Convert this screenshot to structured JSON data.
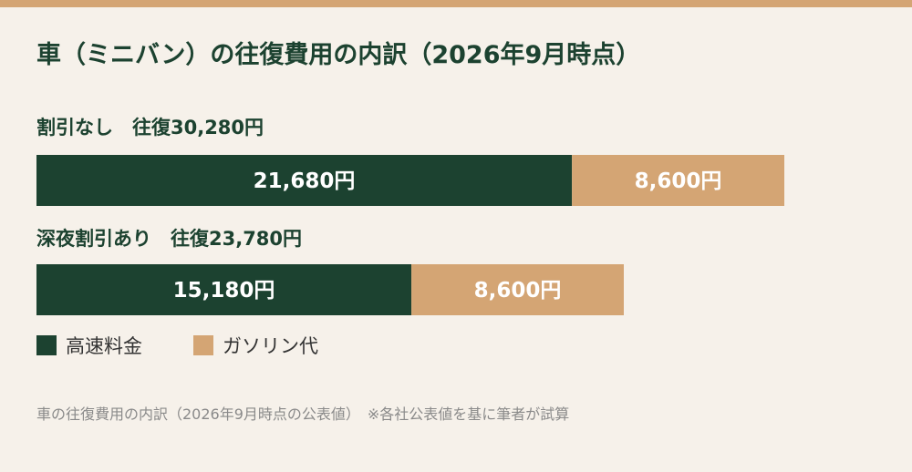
{
  "title": "車（ミニバン）の往復費用の内訳（2026年9月時点）",
  "colors": {
    "accent_bar": "#d4a574",
    "highway": "#1c4230",
    "gasoline": "#d4a574",
    "background": "#f6f1ea"
  },
  "chart_data": {
    "type": "bar",
    "orientation": "horizontal",
    "stacked": true,
    "title": "車（ミニバン）の往復費用の内訳（2026年9月時点）",
    "categories": [
      "割引なし　往復30,280円",
      "深夜割引あり　往復23,780円"
    ],
    "series": [
      {
        "name": "高速料金",
        "color": "#1c4230",
        "values": [
          21680,
          15180
        ],
        "labels": [
          "21,680円",
          "15,180円"
        ]
      },
      {
        "name": "ガソリン代",
        "color": "#d4a574",
        "values": [
          8600,
          8600
        ],
        "labels": [
          "8,600円",
          "8,600円"
        ]
      }
    ],
    "totals": [
      30280,
      23780
    ],
    "legend_position": "bottom-left",
    "grid": false
  },
  "legend": [
    {
      "label": "高速料金",
      "color": "#1c4230"
    },
    {
      "label": "ガソリン代",
      "color": "#d4a574"
    }
  ],
  "footer": "車の往復費用の内訳（2026年9月時点の公表値）　※各社公表値を基に筆者が試算"
}
